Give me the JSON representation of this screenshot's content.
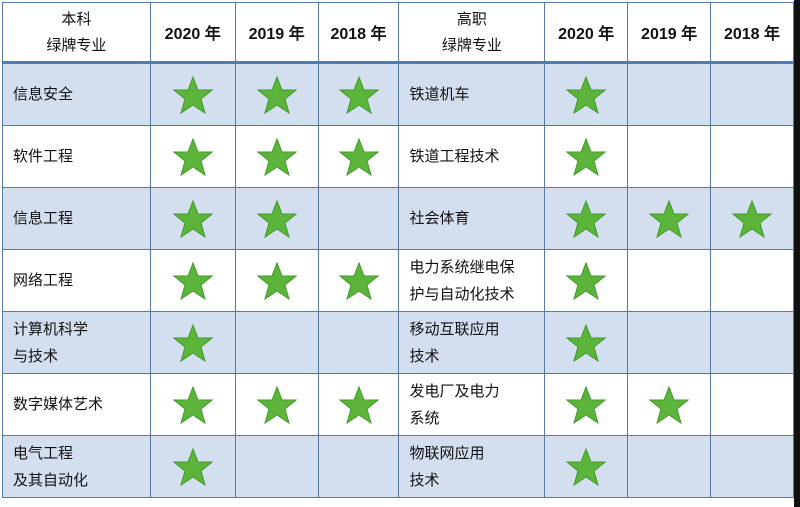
{
  "header": {
    "undergrad_title": "本科\n绿牌专业",
    "vocational_title": "高职\n绿牌专业",
    "years": [
      "2020 年",
      "2019 年",
      "2018 年"
    ]
  },
  "star_color": "#5cb53a",
  "stripe_color": "#d3deef",
  "rows": [
    {
      "undergrad": "信息安全",
      "u": [
        true,
        true,
        true
      ],
      "vocational": "铁道机车",
      "v": [
        true,
        false,
        false
      ]
    },
    {
      "undergrad": "软件工程",
      "u": [
        true,
        true,
        true
      ],
      "vocational": "铁道工程技术",
      "v": [
        true,
        false,
        false
      ]
    },
    {
      "undergrad": "信息工程",
      "u": [
        true,
        true,
        false
      ],
      "vocational": "社会体育",
      "v": [
        true,
        true,
        true
      ]
    },
    {
      "undergrad": "网络工程",
      "u": [
        true,
        true,
        true
      ],
      "vocational": "电力系统继电保\n护与自动化技术",
      "v": [
        true,
        false,
        false
      ]
    },
    {
      "undergrad": "计算机科学\n与技术",
      "u": [
        true,
        false,
        false
      ],
      "vocational": "移动互联应用\n技术",
      "v": [
        true,
        false,
        false
      ]
    },
    {
      "undergrad": "数字媒体艺术",
      "u": [
        true,
        true,
        true
      ],
      "vocational": "发电厂及电力\n系统",
      "v": [
        true,
        true,
        false
      ]
    },
    {
      "undergrad": "电气工程\n及其自动化",
      "u": [
        true,
        false,
        false
      ],
      "vocational": "物联网应用\n技术",
      "v": [
        true,
        false,
        false
      ]
    }
  ]
}
